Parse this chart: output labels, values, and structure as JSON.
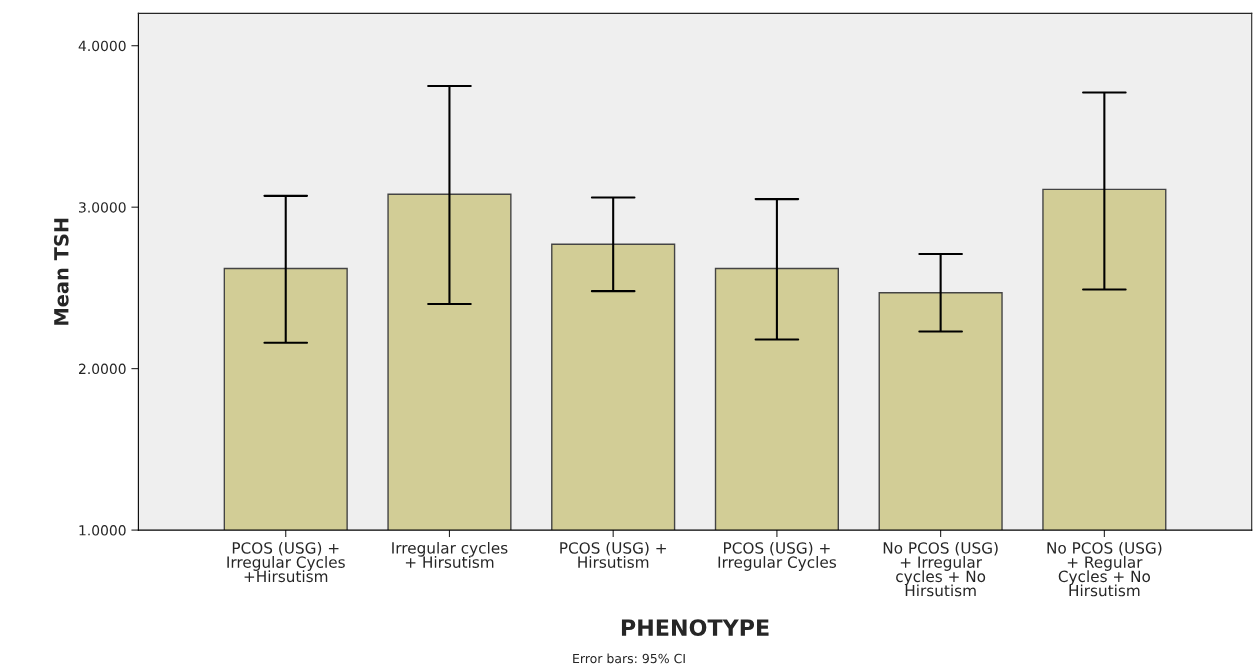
{
  "chart_data": {
    "type": "bar",
    "xlabel": "PHENOTYPE",
    "ylabel": "Mean TSH",
    "categories": [
      "PCOS (USG) +\nIrregular Cycles\n+Hirsutism",
      "Irregular cycles\n+ Hirsutism",
      "PCOS (USG) +\nHirsutism",
      "PCOS (USG) +\nIrregular Cycles",
      "No PCOS (USG)\n+ Irregular\ncycles + No\nHirsutism",
      "No PCOS (USG)\n+ Regular\nCycles + No\nHirsutism"
    ],
    "values": [
      2.62,
      3.08,
      2.77,
      2.62,
      2.47,
      3.11
    ],
    "errors": [
      [
        2.16,
        3.07
      ],
      [
        2.4,
        3.75
      ],
      [
        2.48,
        3.06
      ],
      [
        2.18,
        3.05
      ],
      [
        2.23,
        2.71
      ],
      [
        2.49,
        3.71
      ]
    ],
    "color": "#d2cd96",
    "ylim": [
      1.0,
      4.2
    ],
    "yticks": [
      {
        "value": 1,
        "label": "1.0000"
      },
      {
        "value": 2,
        "label": "2.0000"
      },
      {
        "value": 3,
        "label": "3.0000"
      },
      {
        "value": 4,
        "label": "4.0000"
      }
    ],
    "annotations": [
      "Error bars: 95% CI"
    ],
    "grid": false
  }
}
